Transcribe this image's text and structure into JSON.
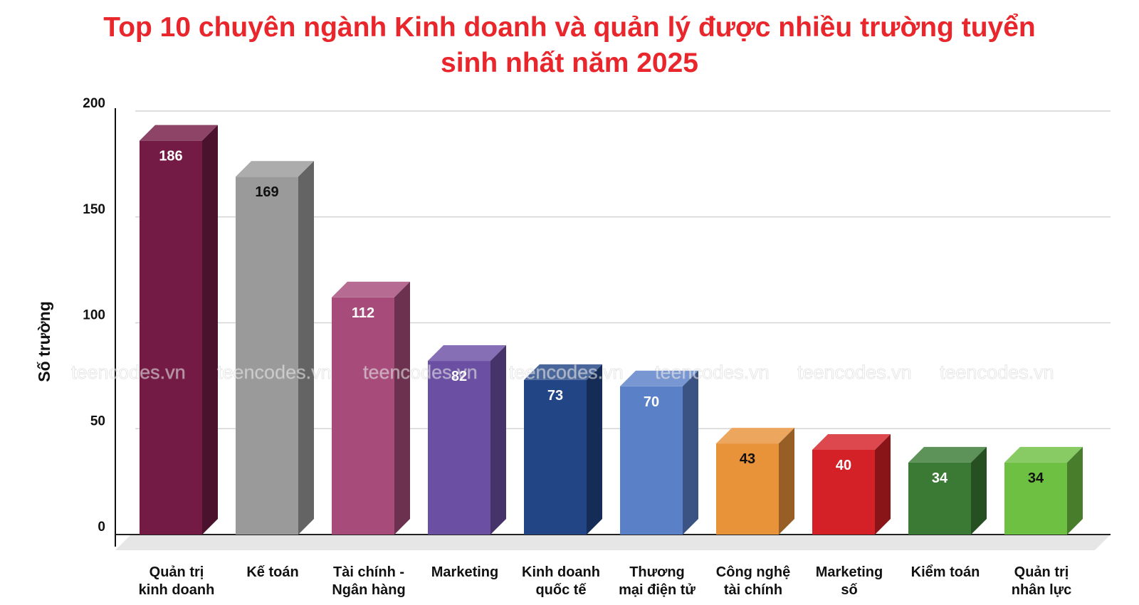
{
  "chart_data": {
    "type": "bar",
    "title_lines": [
      "Top 10 chuyên ngành Kinh doanh và quản lý được nhiều trường tuyển",
      "sinh nhất năm 2025"
    ],
    "xlabel": "",
    "ylabel": "Số trường",
    "ylim": [
      0,
      200
    ],
    "yticks": [
      "0",
      "50",
      "100",
      "150",
      "200"
    ],
    "grid": true,
    "bar_style": "3d",
    "categories": [
      [
        "Quản trị",
        "kinh doanh"
      ],
      [
        "Kế toán"
      ],
      [
        "Tài chính -",
        "Ngân hàng"
      ],
      [
        "Marketing"
      ],
      [
        "Kinh doanh",
        "quốc tế"
      ],
      [
        "Thương",
        "mại điện tử"
      ],
      [
        "Công nghệ",
        "tài chính"
      ],
      [
        "Marketing",
        "số"
      ],
      [
        "Kiểm toán"
      ],
      [
        "Quản trị",
        "nhân lực"
      ]
    ],
    "values": [
      186,
      169,
      112,
      82,
      73,
      70,
      43,
      40,
      34,
      34
    ],
    "bar_colors": [
      "#741b45",
      "#9a9a9a",
      "#a64b7a",
      "#6b4fa3",
      "#214585",
      "#5a80c8",
      "#e8923a",
      "#d42027",
      "#3a7a35",
      "#6ec043"
    ],
    "label_colors": [
      "#ffffff",
      "#111111",
      "#ffffff",
      "#ffffff",
      "#ffffff",
      "#ffffff",
      "#111111",
      "#ffffff",
      "#ffffff",
      "#111111"
    ],
    "watermark": "teencodes.vn"
  }
}
